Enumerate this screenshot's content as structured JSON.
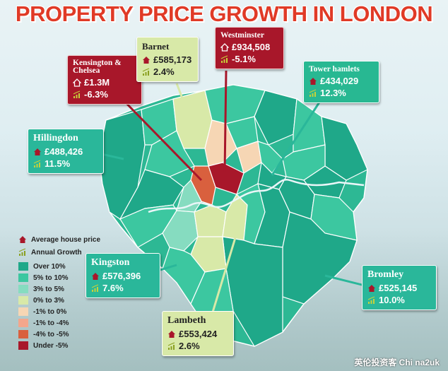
{
  "title": "PROPERTY PRICE GROWTH IN LONDON",
  "legend": {
    "price_label": "Average house price",
    "growth_label": "Annual Growth",
    "items": [
      {
        "label": "Over 10%",
        "color": "#1fa889"
      },
      {
        "label": "5% to 10%",
        "color": "#3cc7a0"
      },
      {
        "label": "3% to 5%",
        "color": "#86dcc0"
      },
      {
        "label": "0% to 3%",
        "color": "#d8e9a8"
      },
      {
        "label": "-1% to 0%",
        "color": "#f6d6b4"
      },
      {
        "label": "-1% to -4%",
        "color": "#f3a68c"
      },
      {
        "label": "-4% to -5%",
        "color": "#d9603e"
      },
      {
        "label": "Under -5%",
        "color": "#a8172a"
      }
    ]
  },
  "callouts": {
    "kensington": {
      "name": "Kensington & Chelsea",
      "price": "£1.3M",
      "growth": "-6.3%"
    },
    "barnet": {
      "name": "Barnet",
      "price": "£585,173",
      "growth": "2.4%"
    },
    "westminster": {
      "name": "Westminster",
      "price": "£934,508",
      "growth": "-5.1%"
    },
    "tower_hamlets": {
      "name": "Tower hamlets",
      "price": "£434,029",
      "growth": "12.3%"
    },
    "hillingdon": {
      "name": "Hillingdon",
      "price": "£488,426",
      "growth": "11.5%"
    },
    "kingston": {
      "name": "Kingston",
      "price": "£576,396",
      "growth": "7.6%"
    },
    "bromley": {
      "name": "Bromley",
      "price": "£525,145",
      "growth": "10.0%"
    },
    "lambeth": {
      "name": "Lambeth",
      "price": "£553,424",
      "growth": "2.6%"
    }
  },
  "watermark": "英伦投资客  Chi na2uk",
  "colors": {
    "title": "#e03a26",
    "house_icon": "#a8172a",
    "growth_icon": "#c6d23a"
  }
}
